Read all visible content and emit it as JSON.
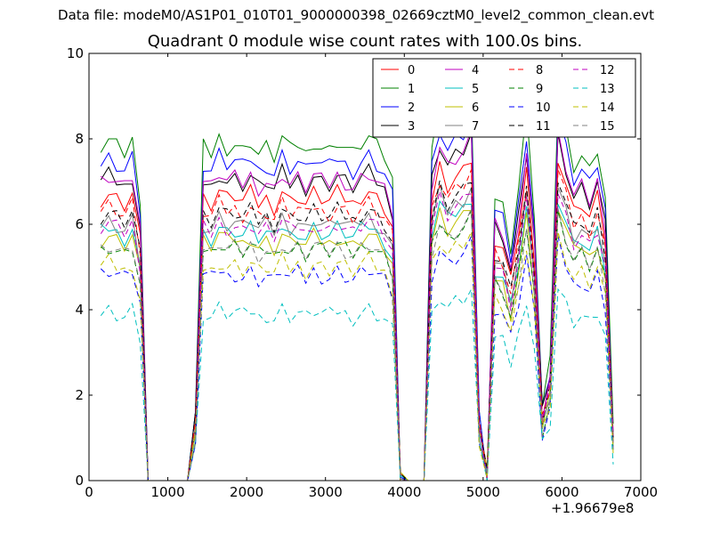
{
  "header": {
    "datafile_label": "Data file: modeM0/AS1P01_010T01_9000000398_02669cztM0_level2_common_clean.evt"
  },
  "chart_data": {
    "type": "line",
    "title": "Quadrant 0 module wise count rates with 100.0s bins.",
    "xlabel": "",
    "ylabel": "",
    "x_offset_label": "+1.96679e8",
    "xlim": [
      0,
      7000
    ],
    "ylim": [
      0,
      10
    ],
    "xticks": [
      0,
      1000,
      2000,
      3000,
      4000,
      5000,
      6000,
      7000
    ],
    "yticks": [
      0,
      2,
      4,
      6,
      8,
      10
    ],
    "grid": false,
    "legend_position": "top-right",
    "legend_columns": 4,
    "x": [
      150,
      250,
      350,
      450,
      550,
      650,
      750,
      850,
      950,
      1050,
      1150,
      1250,
      1350,
      1450,
      1550,
      1650,
      1750,
      1850,
      1950,
      2050,
      2150,
      2250,
      2350,
      2450,
      2550,
      2650,
      2750,
      2850,
      2950,
      3050,
      3150,
      3250,
      3350,
      3450,
      3550,
      3650,
      3750,
      3850,
      3950,
      4050,
      4150,
      4250,
      4350,
      4450,
      4550,
      4650,
      4750,
      4850,
      4950,
      5050,
      5150,
      5250,
      5350,
      5450,
      5550,
      5650,
      5750,
      5850,
      5950,
      6050,
      6150,
      6250,
      6350,
      6450,
      6550,
      6650
    ],
    "series": [
      {
        "name": "0",
        "color": "#ff0000",
        "dash": "solid",
        "level": 6.6
      },
      {
        "name": "1",
        "color": "#008000",
        "dash": "solid",
        "level": 7.8
      },
      {
        "name": "2",
        "color": "#0000ff",
        "dash": "solid",
        "level": 7.4
      },
      {
        "name": "3",
        "color": "#000000",
        "dash": "solid",
        "level": 7.0
      },
      {
        "name": "4",
        "color": "#bf00bf",
        "dash": "solid",
        "level": 7.0
      },
      {
        "name": "5",
        "color": "#00bfbf",
        "dash": "solid",
        "level": 5.8
      },
      {
        "name": "6",
        "color": "#bfbf00",
        "dash": "solid",
        "level": 5.6
      },
      {
        "name": "7",
        "color": "#808080",
        "dash": "solid",
        "level": 6.0
      },
      {
        "name": "8",
        "color": "#ff0000",
        "dash": "dashed",
        "level": 6.3
      },
      {
        "name": "9",
        "color": "#008000",
        "dash": "dashed",
        "level": 5.4
      },
      {
        "name": "10",
        "color": "#0000ff",
        "dash": "dashed",
        "level": 4.8
      },
      {
        "name": "11",
        "color": "#000000",
        "dash": "dashed",
        "level": 6.2
      },
      {
        "name": "12",
        "color": "#bf00bf",
        "dash": "dashed",
        "level": 5.9
      },
      {
        "name": "13",
        "color": "#00bfbf",
        "dash": "dashed",
        "level": 3.9
      },
      {
        "name": "14",
        "color": "#bfbf00",
        "dash": "dashed",
        "level": 5.0
      },
      {
        "name": "15",
        "color": "#808080",
        "dash": "dashed",
        "level": 5.4
      }
    ]
  }
}
